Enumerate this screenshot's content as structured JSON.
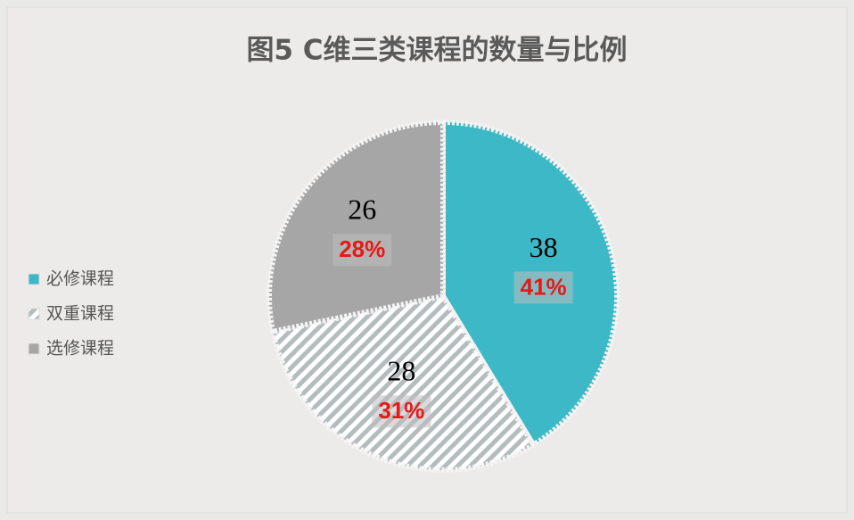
{
  "chart_data": {
    "type": "pie",
    "title": "图5  C维三类课程的数量与比例",
    "categories": [
      "必修课程",
      "双重课程",
      "选修课程"
    ],
    "values": [
      38,
      28,
      26
    ],
    "percent_labels": [
      "41%",
      "31%",
      "28%"
    ],
    "colors": [
      "#3cb8c6",
      "#b4bcbd",
      "#a6a6a6"
    ],
    "legend": "left"
  }
}
